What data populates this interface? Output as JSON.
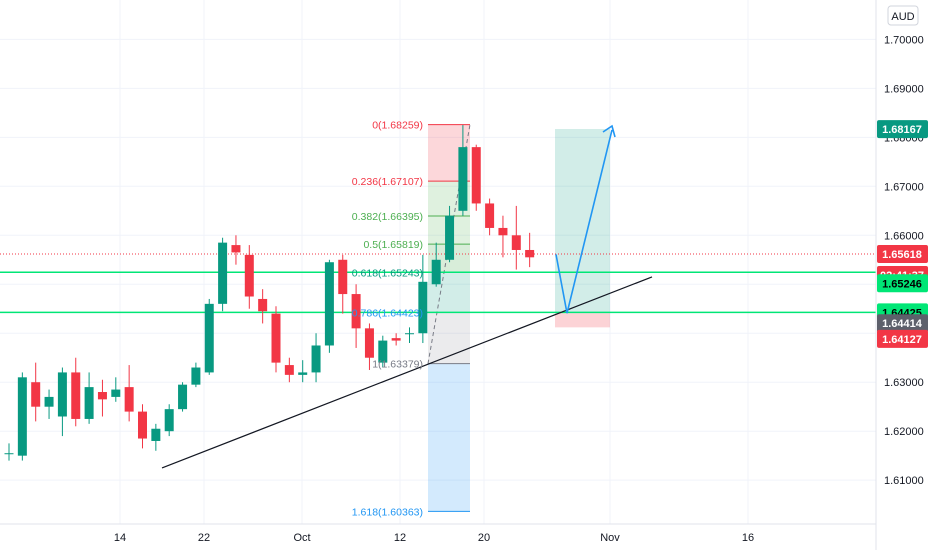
{
  "chart_data": {
    "type": "candlestick",
    "currency": "AUD",
    "ylim": [
      1.603,
      1.708
    ],
    "y_ticks": [
      "1.70000",
      "1.69000",
      "1.68000",
      "1.67000",
      "1.66000",
      "1.65000",
      "1.64000",
      "1.63000",
      "1.62000",
      "1.61000"
    ],
    "x_ticks": [
      "14",
      "22",
      "Oct",
      "12",
      "20",
      "Nov",
      "16"
    ],
    "candles": [
      {
        "o": 1.6155,
        "h": 1.6175,
        "l": 1.614,
        "c": 1.6155
      },
      {
        "o": 1.615,
        "h": 1.632,
        "l": 1.614,
        "c": 1.631
      },
      {
        "o": 1.63,
        "h": 1.634,
        "l": 1.622,
        "c": 1.625
      },
      {
        "o": 1.625,
        "h": 1.6285,
        "l": 1.6225,
        "c": 1.627
      },
      {
        "o": 1.623,
        "h": 1.633,
        "l": 1.619,
        "c": 1.632
      },
      {
        "o": 1.632,
        "h": 1.635,
        "l": 1.621,
        "c": 1.6225
      },
      {
        "o": 1.6225,
        "h": 1.632,
        "l": 1.6215,
        "c": 1.629
      },
      {
        "o": 1.628,
        "h": 1.6305,
        "l": 1.623,
        "c": 1.6265
      },
      {
        "o": 1.627,
        "h": 1.631,
        "l": 1.626,
        "c": 1.6285
      },
      {
        "o": 1.629,
        "h": 1.6335,
        "l": 1.622,
        "c": 1.624
      },
      {
        "o": 1.624,
        "h": 1.6255,
        "l": 1.6165,
        "c": 1.6185
      },
      {
        "o": 1.618,
        "h": 1.6215,
        "l": 1.616,
        "c": 1.6205
      },
      {
        "o": 1.62,
        "h": 1.6255,
        "l": 1.619,
        "c": 1.6245
      },
      {
        "o": 1.6245,
        "h": 1.63,
        "l": 1.624,
        "c": 1.6295
      },
      {
        "o": 1.6295,
        "h": 1.634,
        "l": 1.629,
        "c": 1.633
      },
      {
        "o": 1.632,
        "h": 1.647,
        "l": 1.6315,
        "c": 1.646
      },
      {
        "o": 1.646,
        "h": 1.6595,
        "l": 1.6445,
        "c": 1.6585
      },
      {
        "o": 1.658,
        "h": 1.66,
        "l": 1.654,
        "c": 1.6565
      },
      {
        "o": 1.656,
        "h": 1.658,
        "l": 1.645,
        "c": 1.6475
      },
      {
        "o": 1.647,
        "h": 1.649,
        "l": 1.642,
        "c": 1.6445
      },
      {
        "o": 1.644,
        "h": 1.6455,
        "l": 1.632,
        "c": 1.634
      },
      {
        "o": 1.6335,
        "h": 1.635,
        "l": 1.63,
        "c": 1.6315
      },
      {
        "o": 1.6315,
        "h": 1.6345,
        "l": 1.63,
        "c": 1.632
      },
      {
        "o": 1.632,
        "h": 1.64,
        "l": 1.63,
        "c": 1.6375
      },
      {
        "o": 1.6375,
        "h": 1.655,
        "l": 1.636,
        "c": 1.6545
      },
      {
        "o": 1.655,
        "h": 1.656,
        "l": 1.644,
        "c": 1.648
      },
      {
        "o": 1.648,
        "h": 1.65,
        "l": 1.637,
        "c": 1.641
      },
      {
        "o": 1.641,
        "h": 1.642,
        "l": 1.6325,
        "c": 1.635
      },
      {
        "o": 1.634,
        "h": 1.6395,
        "l": 1.633,
        "c": 1.6385
      },
      {
        "o": 1.639,
        "h": 1.64,
        "l": 1.6375,
        "c": 1.6385
      },
      {
        "o": 1.64,
        "h": 1.6412,
        "l": 1.638,
        "c": 1.64
      },
      {
        "o": 1.64,
        "h": 1.656,
        "l": 1.638,
        "c": 1.6505
      },
      {
        "o": 1.65,
        "h": 1.6585,
        "l": 1.6495,
        "c": 1.655
      },
      {
        "o": 1.655,
        "h": 1.666,
        "l": 1.6545,
        "c": 1.664
      },
      {
        "o": 1.665,
        "h": 1.6825,
        "l": 1.664,
        "c": 1.678
      },
      {
        "o": 1.678,
        "h": 1.6785,
        "l": 1.665,
        "c": 1.6665
      },
      {
        "o": 1.6665,
        "h": 1.6675,
        "l": 1.66,
        "c": 1.6615
      },
      {
        "o": 1.6615,
        "h": 1.664,
        "l": 1.6555,
        "c": 1.66
      },
      {
        "o": 1.66,
        "h": 1.666,
        "l": 1.653,
        "c": 1.657
      },
      {
        "o": 1.657,
        "h": 1.6605,
        "l": 1.6535,
        "c": 1.6555
      }
    ],
    "fib_levels": [
      {
        "label": "0(1.68259)",
        "price": 1.68259,
        "color": "#f23645"
      },
      {
        "label": "0.236(1.67107)",
        "price": 1.67107,
        "color": "#f23645"
      },
      {
        "label": "0.382(1.66395)",
        "price": 1.66395,
        "color": "#4caf50"
      },
      {
        "label": "0.5(1.65819)",
        "price": 1.65819,
        "color": "#4caf50"
      },
      {
        "label": "0.618(1.65243)",
        "price": 1.65243,
        "color": "#089981"
      },
      {
        "label": "0.786(1.64423)",
        "price": 1.64423,
        "color": "#2196f3"
      },
      {
        "label": "1(1.63379)",
        "price": 1.63379,
        "color": "#787b86"
      },
      {
        "label": "1.618(1.60363)",
        "price": 1.60363,
        "color": "#2196f3"
      }
    ],
    "horizontal_levels": [
      1.65246,
      1.64425
    ],
    "current_price": 1.65618,
    "trendline": {
      "from": [
        1.6125,
        0
      ],
      "to": [
        1.6515,
        0
      ]
    },
    "long_position": {
      "entry": 1.6441,
      "target": 1.6817,
      "stop": 1.6412
    },
    "projection": {
      "p0": 1.6561,
      "p1": 1.6441,
      "p2": 1.6815
    },
    "price_labels": [
      {
        "text": "1.68167",
        "price": 1.68167,
        "bg": "#089981",
        "fg": "#ffffff"
      },
      {
        "text": "1.65618",
        "price": 1.65618,
        "bg": "#f23645",
        "fg": "#ffffff"
      },
      {
        "text": "02:41:37",
        "price": 1.6519,
        "bg": "#f23645",
        "fg": "#ffffff"
      },
      {
        "text": "1.65246",
        "price": 1.6502,
        "bg": "#00e676",
        "fg": "#000000"
      },
      {
        "text": "1.64425",
        "price": 1.64425,
        "bg": "#00e676",
        "fg": "#000000"
      },
      {
        "text": "1.64414",
        "price": 1.64205,
        "bg": "#5d606b",
        "fg": "#ffffff"
      },
      {
        "text": "1.64127",
        "price": 1.63885,
        "bg": "#f23645",
        "fg": "#ffffff"
      }
    ]
  },
  "colors": {
    "up": "#089981",
    "down": "#f23645",
    "grid": "#f0f3fa",
    "axis_text": "#131722",
    "level_line": "#00e676",
    "projection": "#2196f3"
  }
}
